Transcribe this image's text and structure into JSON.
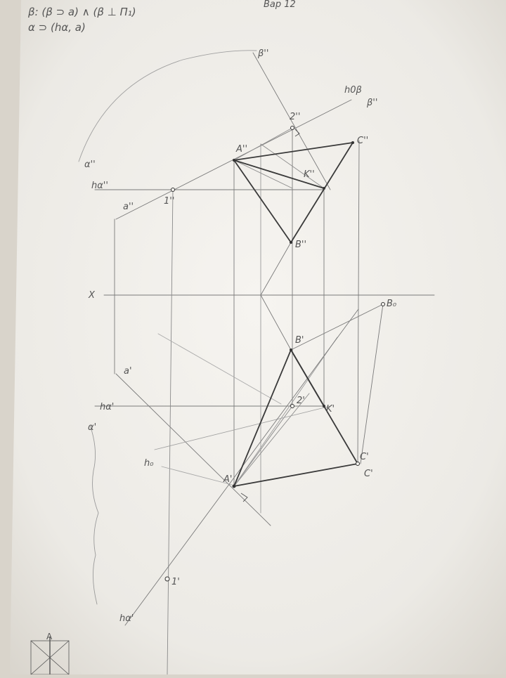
{
  "notes": {
    "line1": "β: (β ⊃ a) ∧ (β ⊥ Π₁)",
    "line2": "α ⊃ (hα, a)",
    "corner": "Вар 12"
  },
  "labels": {
    "x_axis": "X",
    "h0beta": "h0β",
    "beta_front": "β''",
    "beta_top": "β''",
    "alpha_front": "α''",
    "h_alpha_front": "hα''",
    "a_front": "a''",
    "one_front": "1''",
    "A_front": "A''",
    "two_front": "2''",
    "K_front": "K''",
    "C_front": "C''",
    "B_front": "B''",
    "B0": "B₀",
    "B_top": "B'",
    "a_top": "a'",
    "h_alpha_top": "hα'",
    "alpha_top": "α'",
    "two_top": "2'",
    "K_top": "K'",
    "h0": "h₀",
    "A_top": "A'",
    "C_top": "C'",
    "C_top2": "C'",
    "one_top": "1'",
    "h_alpha_bottom": "hα'",
    "stamp": "A"
  },
  "colors": {
    "paper": "#f2f0ec",
    "pencil": "#6a6a6a",
    "heavy": "#333333",
    "light": "#9a9a9a"
  }
}
